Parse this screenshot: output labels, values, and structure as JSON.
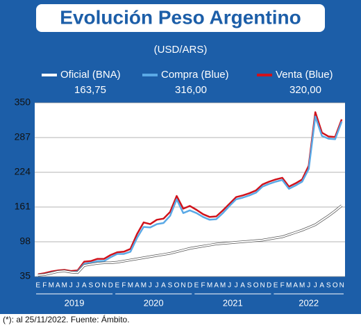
{
  "chart_data": {
    "type": "line",
    "title": "Evolución Peso Argentino",
    "subtitle": "(USD/ARS)",
    "footnote": "(*): al 25/11/2022. Fuente: Ámbito.",
    "categories": [
      "E",
      "F",
      "M",
      "A",
      "M",
      "J",
      "J",
      "A",
      "S",
      "O",
      "N",
      "D",
      "E",
      "F",
      "M",
      "A",
      "M",
      "J",
      "J",
      "A",
      "S",
      "O",
      "N",
      "D",
      "E",
      "F",
      "M",
      "A",
      "M",
      "J",
      "J",
      "A",
      "S",
      "O",
      "N",
      "D",
      "E",
      "F",
      "M",
      "A",
      "M",
      "J",
      "J",
      "A",
      "S",
      "O",
      "N"
    ],
    "years": [
      "2019",
      "2020",
      "2021",
      "2022"
    ],
    "ylim": [
      35,
      350
    ],
    "yticks": [
      35,
      98,
      161,
      224,
      287,
      350
    ],
    "grid": true,
    "series": [
      {
        "name": "Oficial (BNA)",
        "latest_label": "163,75",
        "color": "#ffffff",
        "values": [
          37.5,
          38.5,
          41,
          44,
          45,
          43,
          42,
          55,
          57,
          59,
          60,
          60,
          61,
          63,
          65,
          67,
          69,
          71,
          73,
          75,
          77,
          80,
          83,
          86,
          88,
          90,
          92,
          94,
          95,
          96,
          97,
          98,
          99,
          100,
          101,
          103,
          105,
          107,
          111,
          115,
          119,
          124,
          129,
          137,
          145,
          154,
          163.75
        ]
      },
      {
        "name": "Compra (Blue)",
        "latest_label": "316,00",
        "color": "#5aa9e6",
        "values": [
          37,
          39,
          42,
          44,
          45,
          43,
          44,
          58,
          60,
          63,
          63,
          70,
          76,
          76,
          80,
          105,
          125,
          124,
          130,
          132,
          145,
          175,
          150,
          155,
          150,
          143,
          138,
          139,
          150,
          163,
          175,
          178,
          182,
          187,
          198,
          203,
          207,
          210,
          194,
          200,
          207,
          230,
          325,
          290,
          285,
          284,
          316
        ]
      },
      {
        "name": "Venta (Blue)",
        "latest_label": "320,00",
        "color": "#d0121b",
        "values": [
          39,
          41,
          44,
          46,
          47,
          45,
          46,
          62,
          63,
          67,
          67,
          74,
          79,
          80,
          85,
          112,
          133,
          130,
          138,
          140,
          152,
          181,
          158,
          163,
          156,
          148,
          143,
          144,
          155,
          167,
          179,
          182,
          186,
          191,
          202,
          207,
          211,
          214,
          198,
          204,
          211,
          236,
          333,
          296,
          289,
          288,
          320
        ]
      }
    ]
  }
}
